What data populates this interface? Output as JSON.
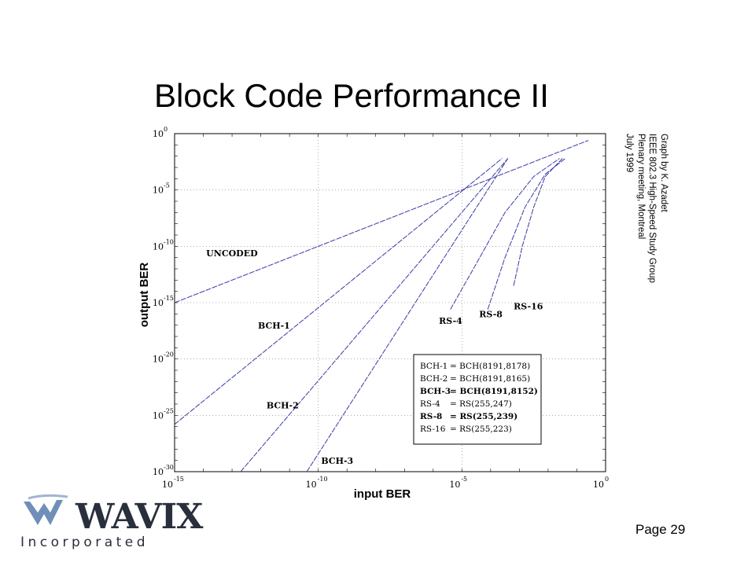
{
  "slide": {
    "title": "Block Code Performance II",
    "credit_lines": [
      "Graph by K. Azadet",
      "IEEE 802.3 High-Speed Study Group",
      "Plenary meeting, Montreal",
      "July 1999"
    ],
    "page_number": "Page 29"
  },
  "logo": {
    "word": "WAVIX",
    "sub": "Incorporated",
    "colors": {
      "primary": "#2a2f3d",
      "accent": "#6f8fb8"
    }
  },
  "chart_data": {
    "type": "line",
    "xlabel": "input BER",
    "ylabel": "output BER",
    "xscale": "log",
    "yscale": "log",
    "xlim_exp": [
      -15,
      0
    ],
    "ylim_exp": [
      -30,
      0
    ],
    "x_ticks": [
      {
        "exp": -15,
        "label": "10",
        "sup": "-15"
      },
      {
        "exp": -10,
        "label": "10",
        "sup": "-10"
      },
      {
        "exp": -5,
        "label": "10",
        "sup": "-5"
      },
      {
        "exp": 0,
        "label": "10",
        "sup": "0"
      }
    ],
    "y_ticks": [
      {
        "exp": 0,
        "label": "10",
        "sup": "0"
      },
      {
        "exp": -5,
        "label": "10",
        "sup": "-5"
      },
      {
        "exp": -10,
        "label": "10",
        "sup": "-10"
      },
      {
        "exp": -15,
        "label": "10",
        "sup": "-15"
      },
      {
        "exp": -20,
        "label": "10",
        "sup": "-20"
      },
      {
        "exp": -25,
        "label": "10",
        "sup": "-25"
      },
      {
        "exp": -30,
        "label": "10",
        "sup": "-30"
      }
    ],
    "grid": true,
    "line_color": "#3a3aa8",
    "series": [
      {
        "name": "UNCODED",
        "points": [
          [
            -15,
            -15
          ],
          [
            -0.6,
            -0.6
          ]
        ],
        "label_at": [
          -13.9,
          -10.9
        ]
      },
      {
        "name": "BCH-1",
        "points": [
          [
            -15,
            -25.8
          ],
          [
            -3.6,
            -2.2
          ]
        ],
        "label_at": [
          -12.1,
          -17.3
        ]
      },
      {
        "name": "BCH-2",
        "points": [
          [
            -12.7,
            -30
          ],
          [
            -3.4,
            -2.2
          ]
        ],
        "label_at": [
          -11.8,
          -24.4
        ]
      },
      {
        "name": "BCH-3",
        "points": [
          [
            -10.4,
            -30
          ],
          [
            -3.4,
            -2.2
          ]
        ],
        "label_at": [
          -9.9,
          -29.3
        ]
      },
      {
        "name": "RS-4",
        "points": [
          [
            -5.4,
            -15.6
          ],
          [
            -4.6,
            -12
          ],
          [
            -3.5,
            -7
          ],
          [
            -2.5,
            -3.8
          ],
          [
            -1.6,
            -2.2
          ]
        ],
        "label_at": [
          -5.8,
          -16.9
        ]
      },
      {
        "name": "RS-8",
        "points": [
          [
            -4.1,
            -15.6
          ],
          [
            -3.5,
            -11
          ],
          [
            -2.8,
            -6.5
          ],
          [
            -2.1,
            -3.6
          ],
          [
            -1.4,
            -2.2
          ]
        ],
        "label_at": [
          -4.4,
          -16.3
        ]
      },
      {
        "name": "RS-16",
        "points": [
          [
            -3.2,
            -13.5
          ],
          [
            -2.9,
            -10
          ],
          [
            -2.5,
            -6.5
          ],
          [
            -2.1,
            -3.8
          ],
          [
            -1.5,
            -2.2
          ]
        ],
        "label_at": [
          -3.2,
          -15.6
        ]
      }
    ],
    "legend_box": {
      "placement": "bottom-right",
      "entries": [
        {
          "left": "BCH-1",
          "right": "= BCH(8191,8178)",
          "bold": false
        },
        {
          "left": "BCH-2",
          "right": "= BCH(8191,8165)",
          "bold": false
        },
        {
          "left": "BCH-3",
          "right": "= BCH(8191,8152)",
          "bold": true
        },
        {
          "left": "RS-4",
          "right": "= RS(255,247)",
          "bold": false
        },
        {
          "left": "RS-8",
          "right": "= RS(255,239)",
          "bold": true
        },
        {
          "left": "RS-16",
          "right": "= RS(255,223)",
          "bold": false
        }
      ]
    }
  }
}
